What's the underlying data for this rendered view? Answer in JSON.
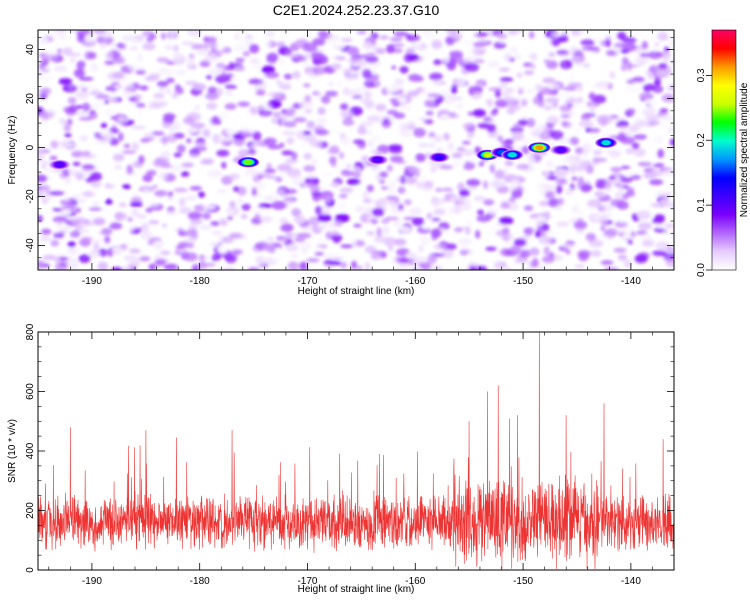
{
  "figure_title": "C2E1.2024.252.23.37.G10",
  "chart_data": [
    {
      "type": "heatmap",
      "xlabel": "Height of straight line (km)",
      "ylabel": "Frequency (Hz)",
      "xlim": [
        -195,
        -136
      ],
      "ylim": [
        -50,
        48
      ],
      "x_ticks": [
        -190,
        -180,
        -170,
        -160,
        -150,
        -140
      ],
      "y_ticks": [
        -40,
        -20,
        0,
        20,
        40
      ],
      "grid": false,
      "colorbar": {
        "label": "Normalized spectral amplitude",
        "range": [
          0,
          0.37
        ],
        "ticks": [
          0.0,
          0.1,
          0.2,
          0.3
        ],
        "colors": [
          "#ffffff",
          "#e6ccff",
          "#b366ff",
          "#7a00ff",
          "#3d00ff",
          "#0000ff",
          "#0099ff",
          "#00ffcc",
          "#00ff00",
          "#ccff00",
          "#ffff00",
          "#ff9900",
          "#ff0000",
          "#ff0066"
        ]
      },
      "hot_spots": [
        {
          "x": -193.0,
          "y": -7,
          "value": 0.12
        },
        {
          "x": -175.5,
          "y": -6,
          "value": 0.28
        },
        {
          "x": -163.5,
          "y": -5,
          "value": 0.12
        },
        {
          "x": -157.8,
          "y": -4,
          "value": 0.14
        },
        {
          "x": -153.3,
          "y": -3,
          "value": 0.3
        },
        {
          "x": -152.0,
          "y": -2,
          "value": 0.18
        },
        {
          "x": -151.0,
          "y": -3,
          "value": 0.22
        },
        {
          "x": -148.5,
          "y": 0,
          "value": 0.36
        },
        {
          "x": -146.5,
          "y": -1,
          "value": 0.12
        },
        {
          "x": -142.3,
          "y": 2,
          "value": 0.22
        }
      ]
    },
    {
      "type": "line",
      "xlabel": "Height of straight line (km)",
      "ylabel": "SNR (10 * v/v)",
      "xlim": [
        -195,
        -136
      ],
      "ylim": [
        0,
        800
      ],
      "x_ticks": [
        -190,
        -180,
        -170,
        -160,
        -150,
        -140
      ],
      "y_ticks": [
        0,
        200,
        400,
        600,
        800
      ],
      "grid": false,
      "series": [
        {
          "color": "#ee3333",
          "baseline": 160,
          "peaks": [
            {
              "x": -148.5,
              "y": 800
            },
            {
              "x": -152.3,
              "y": 620
            },
            {
              "x": -153.3,
              "y": 600
            },
            {
              "x": -142.5,
              "y": 560
            },
            {
              "x": -146.0,
              "y": 520
            },
            {
              "x": -150.5,
              "y": 520
            },
            {
              "x": -155.0,
              "y": 500
            },
            {
              "x": -192.0,
              "y": 480
            },
            {
              "x": -185.0,
              "y": 470
            },
            {
              "x": -177.0,
              "y": 470
            },
            {
              "x": -137.0,
              "y": 440
            }
          ]
        }
      ]
    }
  ]
}
